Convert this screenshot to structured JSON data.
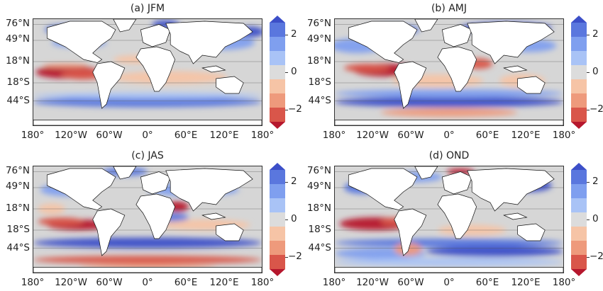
{
  "panels": [
    {
      "id": "a",
      "title": "(a) JFM"
    },
    {
      "id": "b",
      "title": "(b) AMJ"
    },
    {
      "id": "c",
      "title": "(c) JAS"
    },
    {
      "id": "d",
      "title": "(d) OND"
    }
  ],
  "lat_labels": [
    "76°N",
    "49°N",
    "18°N",
    "18°S",
    "44°S"
  ],
  "lon_labels": [
    "180°",
    "120°W",
    "60°W",
    "0°",
    "60°E",
    "120°E",
    "180°"
  ],
  "colorbar": {
    "ticks": [
      "2",
      "0",
      "−2"
    ],
    "colors": [
      "#3c4fc8",
      "#5a77de",
      "#7f9fef",
      "#a9c3f6",
      "#dcdcdc",
      "#f6c4a6",
      "#ee9a7c",
      "#d9564a",
      "#b6172d"
    ]
  },
  "colors": {
    "land": "#ffffff",
    "ocean_neutral": "#d6d6d6",
    "coast": "#111111"
  }
}
